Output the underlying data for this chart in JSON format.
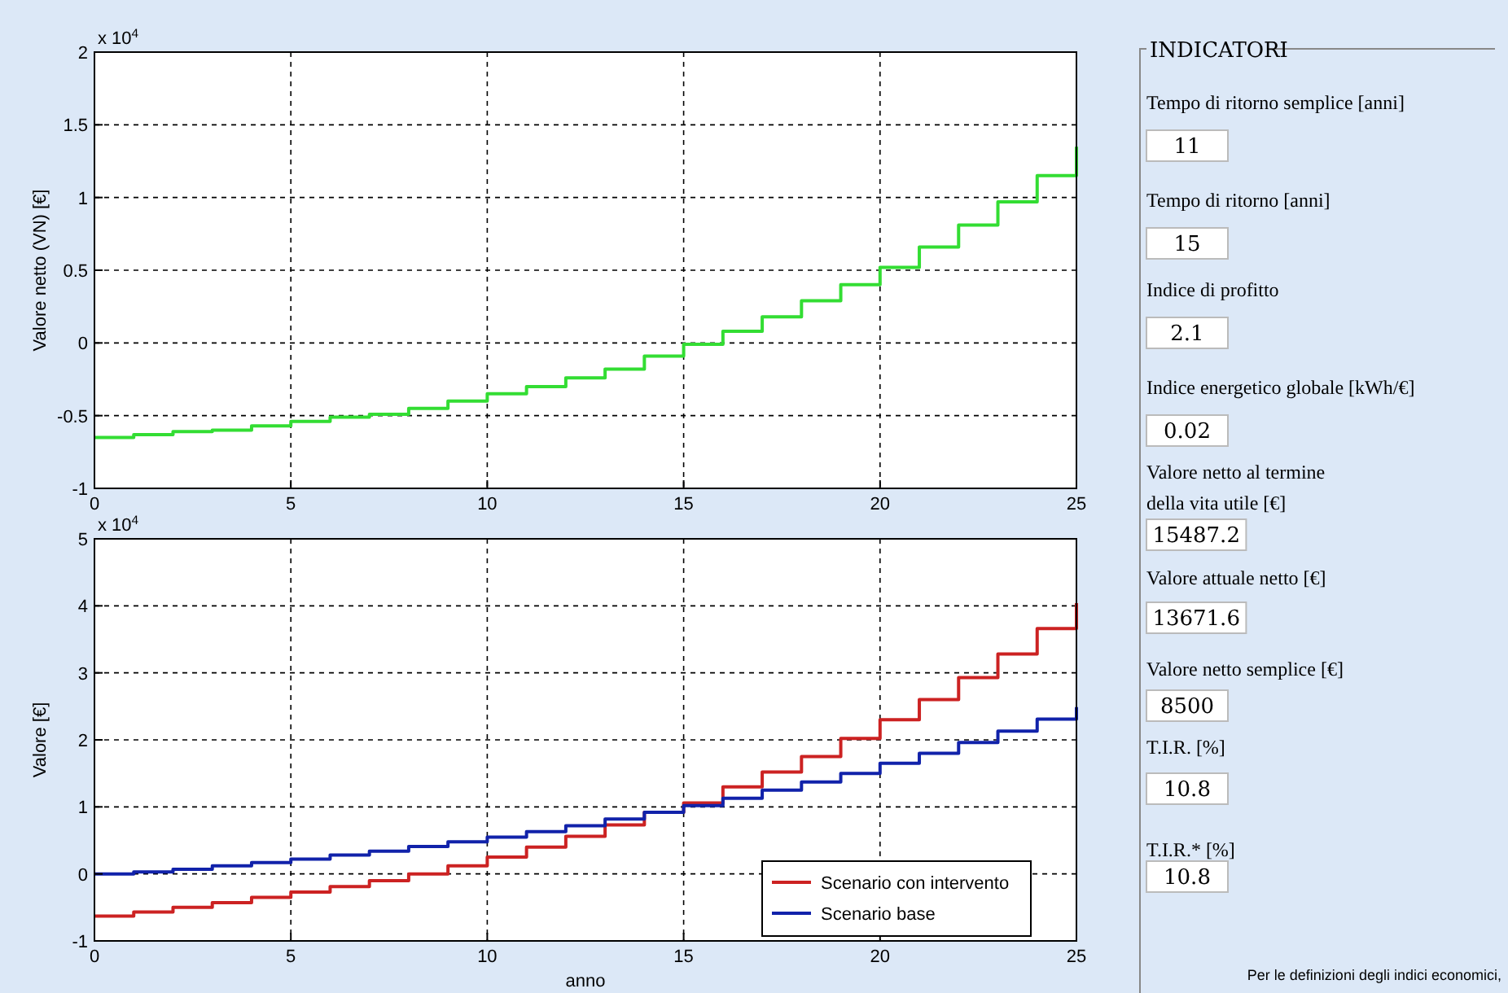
{
  "chart_data": [
    {
      "type": "step",
      "ylabel": "Valore netto (VN) [€]",
      "annotations": [
        "x 10$^{4}$"
      ],
      "x": [
        0,
        1,
        2,
        3,
        4,
        5,
        6,
        7,
        8,
        9,
        10,
        11,
        12,
        13,
        14,
        15,
        16,
        17,
        18,
        19,
        20,
        21,
        22,
        23,
        24,
        25
      ],
      "series": [
        {
          "color": "#33dd33",
          "values": [
            -0.65,
            -0.63,
            -0.61,
            -0.6,
            -0.57,
            -0.54,
            -0.51,
            -0.49,
            -0.45,
            -0.4,
            -0.35,
            -0.3,
            -0.24,
            -0.18,
            -0.09,
            -0.01,
            0.08,
            0.18,
            0.29,
            0.4,
            0.52,
            0.66,
            0.81,
            0.97,
            1.15,
            1.35
          ]
        }
      ],
      "xlim": [
        0,
        25
      ],
      "xticks": [
        0,
        5,
        10,
        15,
        20,
        25
      ],
      "ylim": [
        -1,
        2
      ],
      "yticks": [
        -1,
        -0.5,
        0,
        0.5,
        1,
        1.5,
        2
      ],
      "grid": true,
      "legend": false
    },
    {
      "type": "step",
      "xlabel": "anno",
      "ylabel": "Valore [€]",
      "annotations": [
        "x 10$^{4}$"
      ],
      "x": [
        0,
        1,
        2,
        3,
        4,
        5,
        6,
        7,
        8,
        9,
        10,
        11,
        12,
        13,
        14,
        15,
        16,
        17,
        18,
        19,
        20,
        21,
        22,
        23,
        24,
        25
      ],
      "series": [
        {
          "name": "Scenario con intervento",
          "color": "#cc2222",
          "values": [
            -0.63,
            -0.57,
            -0.5,
            -0.43,
            -0.35,
            -0.27,
            -0.19,
            -0.1,
            0,
            0.12,
            0.25,
            0.4,
            0.56,
            0.73,
            0.92,
            1.06,
            1.3,
            1.52,
            1.75,
            2.02,
            2.3,
            2.6,
            2.93,
            3.28,
            3.66,
            4.04
          ]
        },
        {
          "name": "Scenario base",
          "color": "#1122aa",
          "values": [
            0,
            0.03,
            0.07,
            0.12,
            0.17,
            0.22,
            0.28,
            0.34,
            0.41,
            0.48,
            0.55,
            0.63,
            0.72,
            0.82,
            0.92,
            1.02,
            1.13,
            1.25,
            1.37,
            1.5,
            1.65,
            1.8,
            1.96,
            2.13,
            2.31,
            2.49
          ]
        }
      ],
      "xlim": [
        0,
        25
      ],
      "xticks": [
        0,
        5,
        10,
        15,
        20,
        25
      ],
      "ylim": [
        -1,
        5
      ],
      "yticks": [
        -1,
        0,
        1,
        2,
        3,
        4,
        5
      ],
      "grid": true,
      "legend": "bottom right"
    },
    {
      "type": "other",
      "title": "INDICATORI",
      "annotations": [
        "Tempo di ritorno semplice [anni]",
        "11",
        "Tempo di ritorno [anni]",
        "15",
        "Indice di profitto",
        "2.1",
        "Indice energetico globale [kWh/€]",
        "0.02",
        "Valore netto al termine della vita utile [€]",
        "15487.2",
        "Valore attuale netto [€]",
        "13671.6",
        "Valore netto semplice [€]",
        "8500",
        "T.I.R. [%]",
        "10.8",
        "T.I.R.* [%]",
        "10.8",
        "Per le definizioni degli indici economici,"
      ]
    }
  ]
}
